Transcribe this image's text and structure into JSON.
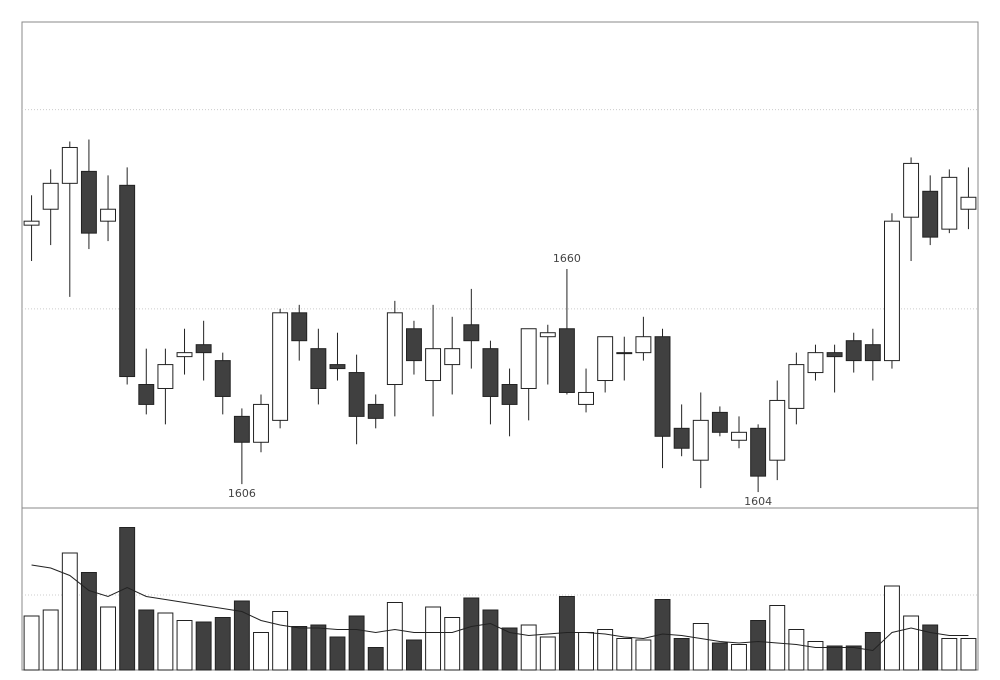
{
  "chart_data": {
    "type": "candlestick",
    "open": [
      1671,
      1675,
      1681.5,
      1684.5,
      1672,
      1681,
      1631,
      1630,
      1638,
      1641,
      1637,
      1623,
      1616.5,
      1622,
      1649,
      1640,
      1636,
      1634,
      1626,
      1631,
      1645,
      1632,
      1636,
      1646,
      1640,
      1631,
      1630,
      1643,
      1645,
      1626,
      1632,
      1639,
      1639,
      1643,
      1620,
      1612,
      1624,
      1617,
      1620,
      1612,
      1625,
      1634,
      1639,
      1642,
      1641,
      1637,
      1673,
      1679.5,
      1670,
      1675
    ],
    "high": [
      1678.5,
      1685,
      1692,
      1692.5,
      1683.5,
      1685.5,
      1640,
      1640,
      1645,
      1647,
      1639,
      1625,
      1628.5,
      1650,
      1651,
      1645,
      1644,
      1638.5,
      1628.5,
      1652,
      1647,
      1651,
      1648,
      1655,
      1642,
      1635,
      1645,
      1646,
      1660,
      1635,
      1643,
      1643,
      1648,
      1645,
      1626,
      1629,
      1625.5,
      1623,
      1621,
      1632,
      1639,
      1641,
      1641,
      1644,
      1645,
      1674,
      1688,
      1683.5,
      1685,
      1685.5
    ],
    "low": [
      1662,
      1666,
      1653,
      1665,
      1667,
      1631,
      1623.5,
      1621,
      1633.5,
      1632,
      1623.5,
      1606,
      1614,
      1620,
      1637,
      1626,
      1632,
      1616,
      1620,
      1623,
      1633.5,
      1623,
      1628.5,
      1635,
      1621,
      1618,
      1622,
      1631,
      1628.5,
      1624,
      1629,
      1632,
      1637,
      1610,
      1613,
      1605,
      1618,
      1615,
      1604,
      1607,
      1621,
      1632,
      1629,
      1634,
      1632,
      1635,
      1662,
      1666,
      1669,
      1670
    ],
    "close": [
      1672,
      1681.5,
      1690.5,
      1669,
      1675,
      1633,
      1626,
      1636,
      1639,
      1639,
      1628,
      1616.5,
      1626,
      1649,
      1642,
      1630,
      1635,
      1623,
      1622.5,
      1649,
      1637,
      1640,
      1640,
      1642,
      1628,
      1626,
      1645,
      1644,
      1629,
      1629,
      1643,
      1639,
      1643,
      1618,
      1615,
      1622,
      1619,
      1619,
      1608,
      1627,
      1636,
      1639,
      1638,
      1637,
      1637,
      1672,
      1686.5,
      1668,
      1683,
      1678
    ],
    "volume": [
      36,
      40,
      78,
      65,
      42,
      95,
      40,
      38,
      33,
      32,
      35,
      46,
      25,
      39,
      29,
      30,
      22,
      36,
      15,
      45,
      20,
      42,
      35,
      48,
      40,
      28,
      30,
      22,
      49,
      25,
      27,
      21,
      20,
      47,
      21,
      31,
      18,
      17,
      33,
      43,
      27,
      19,
      16,
      16,
      25,
      56,
      36,
      30,
      21,
      21
    ],
    "volume_ma": [
      70,
      68,
      63,
      53,
      49,
      55,
      49,
      47,
      45,
      43,
      41,
      39,
      33,
      30,
      28,
      28,
      27,
      27,
      25,
      27,
      25,
      25,
      25,
      29,
      31,
      25,
      23,
      24,
      25,
      25,
      24,
      22,
      21,
      24,
      23,
      21,
      19,
      18,
      19,
      18,
      17,
      15,
      15,
      15,
      13,
      25,
      28,
      25,
      23,
      23
    ],
    "up_color": "#ffffff",
    "down_color": "#404040",
    "line_color": "#222222",
    "ylim": [
      1600,
      1722
    ],
    "grid_lines": [
      1650,
      1700
    ],
    "volume_ylim": [
      0,
      108
    ],
    "volume_grid_lines": [
      50
    ],
    "annotations": [
      {
        "label": "1606",
        "value": 1606
      },
      {
        "label": "1660",
        "value": 1660
      },
      {
        "label": "1604",
        "value": 1604
      }
    ]
  }
}
